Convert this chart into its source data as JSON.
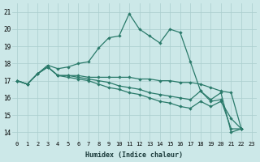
{
  "xlabel": "Humidex (Indice chaleur)",
  "bg_color": "#cce8e8",
  "grid_color": "#aacece",
  "line_color": "#2a7a6a",
  "x_ticks": [
    0,
    1,
    2,
    3,
    4,
    5,
    6,
    7,
    8,
    9,
    10,
    11,
    12,
    13,
    14,
    15,
    16,
    17,
    18,
    19,
    20,
    21,
    22,
    23
  ],
  "ylim": [
    13.5,
    21.5
  ],
  "xlim": [
    -0.5,
    23.5
  ],
  "yticks": [
    14,
    15,
    16,
    17,
    18,
    19,
    20,
    21
  ],
  "series": [
    [
      17.0,
      16.8,
      17.4,
      17.9,
      17.7,
      17.8,
      18.0,
      18.1,
      18.9,
      19.5,
      19.6,
      20.9,
      20.0,
      19.6,
      19.2,
      20.0,
      19.8,
      18.1,
      16.4,
      15.9,
      16.3,
      14.0,
      14.2
    ],
    [
      17.0,
      16.8,
      17.4,
      17.8,
      17.3,
      17.3,
      17.3,
      17.2,
      17.2,
      17.2,
      17.2,
      17.2,
      17.1,
      17.1,
      17.0,
      17.0,
      16.9,
      16.9,
      16.8,
      16.6,
      16.4,
      16.3,
      14.2
    ],
    [
      17.0,
      16.8,
      17.4,
      17.8,
      17.3,
      17.3,
      17.2,
      17.1,
      17.0,
      16.9,
      16.7,
      16.6,
      16.5,
      16.3,
      16.2,
      16.1,
      16.0,
      15.9,
      16.4,
      15.8,
      15.9,
      14.2,
      14.2
    ],
    [
      17.0,
      16.8,
      17.4,
      17.8,
      17.3,
      17.2,
      17.1,
      17.0,
      16.8,
      16.6,
      16.5,
      16.3,
      16.2,
      16.0,
      15.8,
      15.7,
      15.5,
      15.4,
      15.8,
      15.5,
      15.8,
      14.8,
      14.2
    ]
  ]
}
